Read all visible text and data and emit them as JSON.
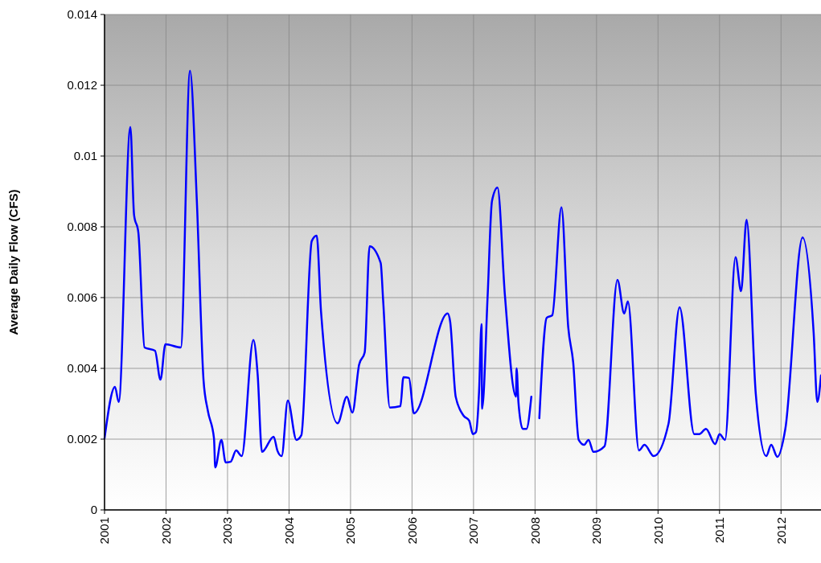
{
  "chart_data": {
    "type": "line",
    "ylabel": "Average Daily Flow (CFS)",
    "x": [
      2001.0,
      2001.17,
      2001.23,
      2001.42,
      2001.48,
      2001.55,
      2001.65,
      2001.82,
      2001.91,
      2001.99,
      2002.24,
      2002.39,
      2002.5,
      2002.61,
      2002.68,
      2002.78,
      2002.8,
      2002.9,
      2002.97,
      2003.05,
      2003.14,
      2003.23,
      2003.42,
      2003.49,
      2003.56,
      2003.75,
      2003.81,
      2003.88,
      2003.98,
      2004.12,
      2004.2,
      2004.37,
      2004.45,
      2004.52,
      2004.79,
      2004.94,
      2005.03,
      2005.14,
      2005.23,
      2005.31,
      2005.49,
      2005.53,
      2005.64,
      2005.81,
      2005.86,
      2005.95,
      2006.03,
      2006.58,
      2006.62,
      2006.71,
      2006.84,
      2006.93,
      2006.99,
      2007.04,
      2007.09,
      2007.13,
      2007.14,
      2007.23,
      2007.3,
      2007.39,
      2007.51,
      2007.69,
      2007.7,
      2007.73,
      2007.8,
      2007.86,
      2007.94,
      2008.0,
      2008.07,
      2008.19,
      2008.28,
      2008.43,
      2008.54,
      2008.62,
      2008.71,
      2008.8,
      2008.87,
      2008.95,
      2009.13,
      2009.34,
      2009.45,
      2009.51,
      2009.69,
      2009.78,
      2009.93,
      2010.17,
      2010.35,
      2010.59,
      2010.67,
      2010.78,
      2010.93,
      2011.0,
      2011.09,
      2011.26,
      2011.35,
      2011.44,
      2011.59,
      2011.76,
      2011.84,
      2011.94,
      2012.07,
      2012.35,
      2012.53,
      2012.59,
      2012.65
    ],
    "series": [
      {
        "color": "#0000ff",
        "values": [
          0.00202,
          0.00348,
          0.00305,
          0.01082,
          0.00834,
          0.00784,
          0.00459,
          0.0045,
          0.00368,
          0.00468,
          0.00459,
          0.01241,
          0.00877,
          0.00366,
          0.0028,
          0.00202,
          0.0012,
          0.00198,
          0.00134,
          0.00136,
          0.00168,
          0.00152,
          0.0048,
          0.00382,
          0.00164,
          0.00207,
          0.00168,
          0.00152,
          0.00309,
          0.00198,
          0.00211,
          0.0076,
          0.00775,
          0.00561,
          0.00245,
          0.0032,
          0.00275,
          0.00411,
          0.00445,
          0.00745,
          0.00698,
          0.00593,
          0.00289,
          0.00293,
          0.00375,
          0.00373,
          0.00273,
          0.00555,
          0.00532,
          0.0032,
          0.00266,
          0.00252,
          0.00214,
          0.0022,
          0.00334,
          0.00525,
          0.00286,
          0.00607,
          0.00873,
          0.00911,
          0.00607,
          0.0032,
          0.004,
          0.00305,
          0.00229,
          0.00229,
          0.0032,
          null,
          0.00259,
          0.00543,
          0.0055,
          0.00855,
          0.00516,
          0.00418,
          0.00198,
          0.00184,
          0.00198,
          0.00164,
          0.0018,
          0.0065,
          0.00555,
          0.00589,
          0.00168,
          0.00184,
          0.00152,
          0.00243,
          0.00573,
          0.00214,
          0.00214,
          0.00229,
          0.00186,
          0.00214,
          0.00198,
          0.00714,
          0.00618,
          0.0082,
          0.00327,
          0.00152,
          0.00184,
          0.0015,
          0.00229,
          0.0077,
          0.00502,
          0.00305,
          0.0038
        ]
      }
    ],
    "xlim": [
      2001,
      2012.65
    ],
    "xticks": [
      2001,
      2002,
      2003,
      2004,
      2005,
      2006,
      2007,
      2008,
      2009,
      2010,
      2011,
      2012
    ],
    "ylim": [
      0,
      0.014
    ],
    "yticks": [
      0,
      0.002,
      0.004,
      0.006,
      0.008,
      0.01,
      0.012,
      0.014
    ],
    "grid": true,
    "line_style": "solid",
    "marker": "none"
  }
}
